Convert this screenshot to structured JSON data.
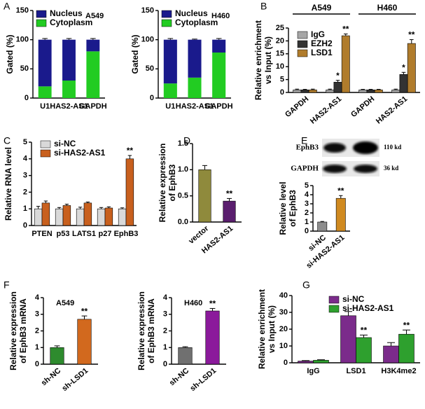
{
  "chart_data": [
    {
      "type": "stacked_bar",
      "panel": "A",
      "annotation": "A549",
      "ylabel": [
        "Gated (%)"
      ],
      "categories": [
        "U1",
        "HAS2-AS1",
        "GAPDH"
      ],
      "series": [
        {
          "name": "Nucleus",
          "color": "#1a1a8c",
          "values": [
            80,
            70,
            20
          ],
          "errors": [
            2,
            2,
            2
          ]
        },
        {
          "name": "Cytoplasm",
          "color": "#22cc22",
          "values": [
            20,
            30,
            80
          ]
        }
      ],
      "ylim": [
        0,
        150
      ],
      "yticks": [
        0,
        50,
        100,
        150
      ]
    },
    {
      "type": "stacked_bar",
      "annotation": "H460",
      "ylabel": [
        "Gated (%)"
      ],
      "categories": [
        "U1",
        "HAS2-AS1",
        "GAPDH"
      ],
      "series": [
        {
          "name": "Nucleus",
          "color": "#1a1a8c",
          "values": [
            75,
            65,
            22
          ],
          "errors": [
            2,
            1,
            2
          ]
        },
        {
          "name": "Cytoplasm",
          "color": "#22cc22",
          "values": [
            25,
            35,
            78
          ]
        }
      ],
      "ylim": [
        0,
        150
      ],
      "yticks": [
        0,
        50,
        100,
        150
      ]
    },
    {
      "type": "grouped_bar",
      "panel": "B",
      "ylabel": [
        "Relative enrichment",
        "vs Input (%)"
      ],
      "groups": [
        "A549",
        "H460"
      ],
      "categories": [
        "GAPDH",
        "HAS2-AS1",
        "GAPDH",
        "HAS2-AS1"
      ],
      "series": [
        {
          "name": "IgG",
          "color": "#a6a6a6",
          "values": [
            1,
            1,
            1,
            1
          ],
          "errors": [
            0.3,
            0.3,
            0.2,
            0.3
          ]
        },
        {
          "name": "EZH2",
          "color": "#333333",
          "values": [
            1,
            4,
            1,
            7
          ],
          "errors": [
            0.2,
            0.7,
            0.2,
            0.8
          ],
          "annotations": [
            null,
            "*",
            null,
            "*"
          ]
        },
        {
          "name": "LSD1",
          "color": "#b07c2c",
          "values": [
            1,
            22,
            1,
            19
          ],
          "errors": [
            0.3,
            0.7,
            0.2,
            1.5
          ],
          "annotations": [
            null,
            "**",
            null,
            "**"
          ]
        }
      ],
      "ylim": [
        0,
        25
      ],
      "yticks": [
        0,
        5,
        10,
        15,
        20,
        25
      ]
    },
    {
      "type": "grouped_bar",
      "panel": "C",
      "ylabel": [
        "Relative RNA level"
      ],
      "categories": [
        "PTEN",
        "p53",
        "LATS1",
        "p27",
        "EphB3"
      ],
      "series": [
        {
          "name": "si-NC",
          "color": "#d9d9d9",
          "values": [
            1,
            1,
            1,
            1,
            1
          ],
          "errors": [
            0.15,
            0.08,
            0.1,
            0.08,
            0.06
          ]
        },
        {
          "name": "si-HAS2-AS1",
          "color": "#c8601e",
          "values": [
            1.35,
            1.2,
            1.35,
            1.05,
            4.0
          ],
          "errors": [
            0.12,
            0.08,
            0.06,
            0.07,
            0.2
          ],
          "annotations": [
            null,
            null,
            null,
            null,
            "**"
          ]
        }
      ],
      "ylim": [
        0,
        5
      ],
      "yticks": [
        0,
        1,
        2,
        3,
        4,
        5
      ]
    },
    {
      "type": "bar",
      "panel": "D",
      "ylabel": [
        "Relative expression",
        "of EphB3"
      ],
      "categories": [
        "vector",
        "HAS2-AS1"
      ],
      "values": [
        1.0,
        0.4
      ],
      "colors": [
        "#8f8a3c",
        "#5a1e6e"
      ],
      "errors": [
        0.08,
        0.05
      ],
      "annotations": [
        null,
        "**"
      ],
      "ylim": [
        0,
        1.5
      ],
      "yticks": [
        {
          "value": 0,
          "label": "0.0"
        },
        0.5,
        {
          "value": 1,
          "label": "1.0"
        },
        1.5
      ]
    },
    {
      "type": "bar",
      "panel": "E",
      "ylabel": [
        "Relative level",
        "of EphB3"
      ],
      "blot_labels": [
        "EphB3",
        "GAPDH"
      ],
      "blot_sizes": [
        "110 kd",
        "36 kd"
      ],
      "categories": [
        "si-NC",
        "si-HAS2-AS1"
      ],
      "values": [
        1.0,
        3.6
      ],
      "colors": [
        "#8c8c8c",
        "#d08a20"
      ],
      "errors": [
        0.06,
        0.3
      ],
      "annotations": [
        null,
        "**"
      ],
      "ylim": [
        0,
        5
      ],
      "yticks": [
        0,
        1,
        2,
        3,
        4,
        5
      ]
    },
    {
      "type": "bar",
      "panel": "F",
      "annotation": "A549",
      "ylabel": [
        "Relative expression",
        "of EphB3 mRNA"
      ],
      "categories": [
        "sh-NC",
        "sh-LSD1"
      ],
      "values": [
        1.0,
        2.7
      ],
      "colors": [
        "#2e8b2e",
        "#d2691e"
      ],
      "errors": [
        0.1,
        0.2
      ],
      "annotations": [
        null,
        "**"
      ],
      "ylim": [
        0,
        4
      ],
      "yticks": [
        0,
        1,
        2,
        3,
        4
      ]
    },
    {
      "type": "bar",
      "annotation": "H460",
      "ylabel": [
        "Relative expression",
        "of EphB3 mRNA"
      ],
      "categories": [
        "sh-NC",
        "sh-LSD1"
      ],
      "values": [
        1.0,
        3.2
      ],
      "colors": [
        "#707070",
        "#8b1a9b"
      ],
      "errors": [
        0.05,
        0.15
      ],
      "annotations": [
        null,
        "**"
      ],
      "ylim": [
        0,
        4
      ],
      "yticks": [
        0,
        1,
        2,
        3,
        4
      ]
    },
    {
      "type": "grouped_bar",
      "panel": "G",
      "ylabel": [
        "Relative enrichment",
        "vs Input (%)"
      ],
      "categories": [
        "IgG",
        "LSD1",
        "H3K4me2"
      ],
      "series": [
        {
          "name": "si-NC",
          "color": "#7b2b8b",
          "values": [
            1,
            28,
            10
          ],
          "errors": [
            0.3,
            2.5,
            2
          ]
        },
        {
          "name": "si-HAS2-AS1",
          "color": "#2ea02e",
          "values": [
            1.5,
            15,
            17
          ],
          "errors": [
            0.3,
            1.5,
            2.5
          ],
          "annotations": [
            null,
            "**",
            "**"
          ]
        }
      ],
      "ylim": [
        0,
        40
      ],
      "yticks": [
        0,
        10,
        20,
        30,
        40
      ]
    }
  ]
}
